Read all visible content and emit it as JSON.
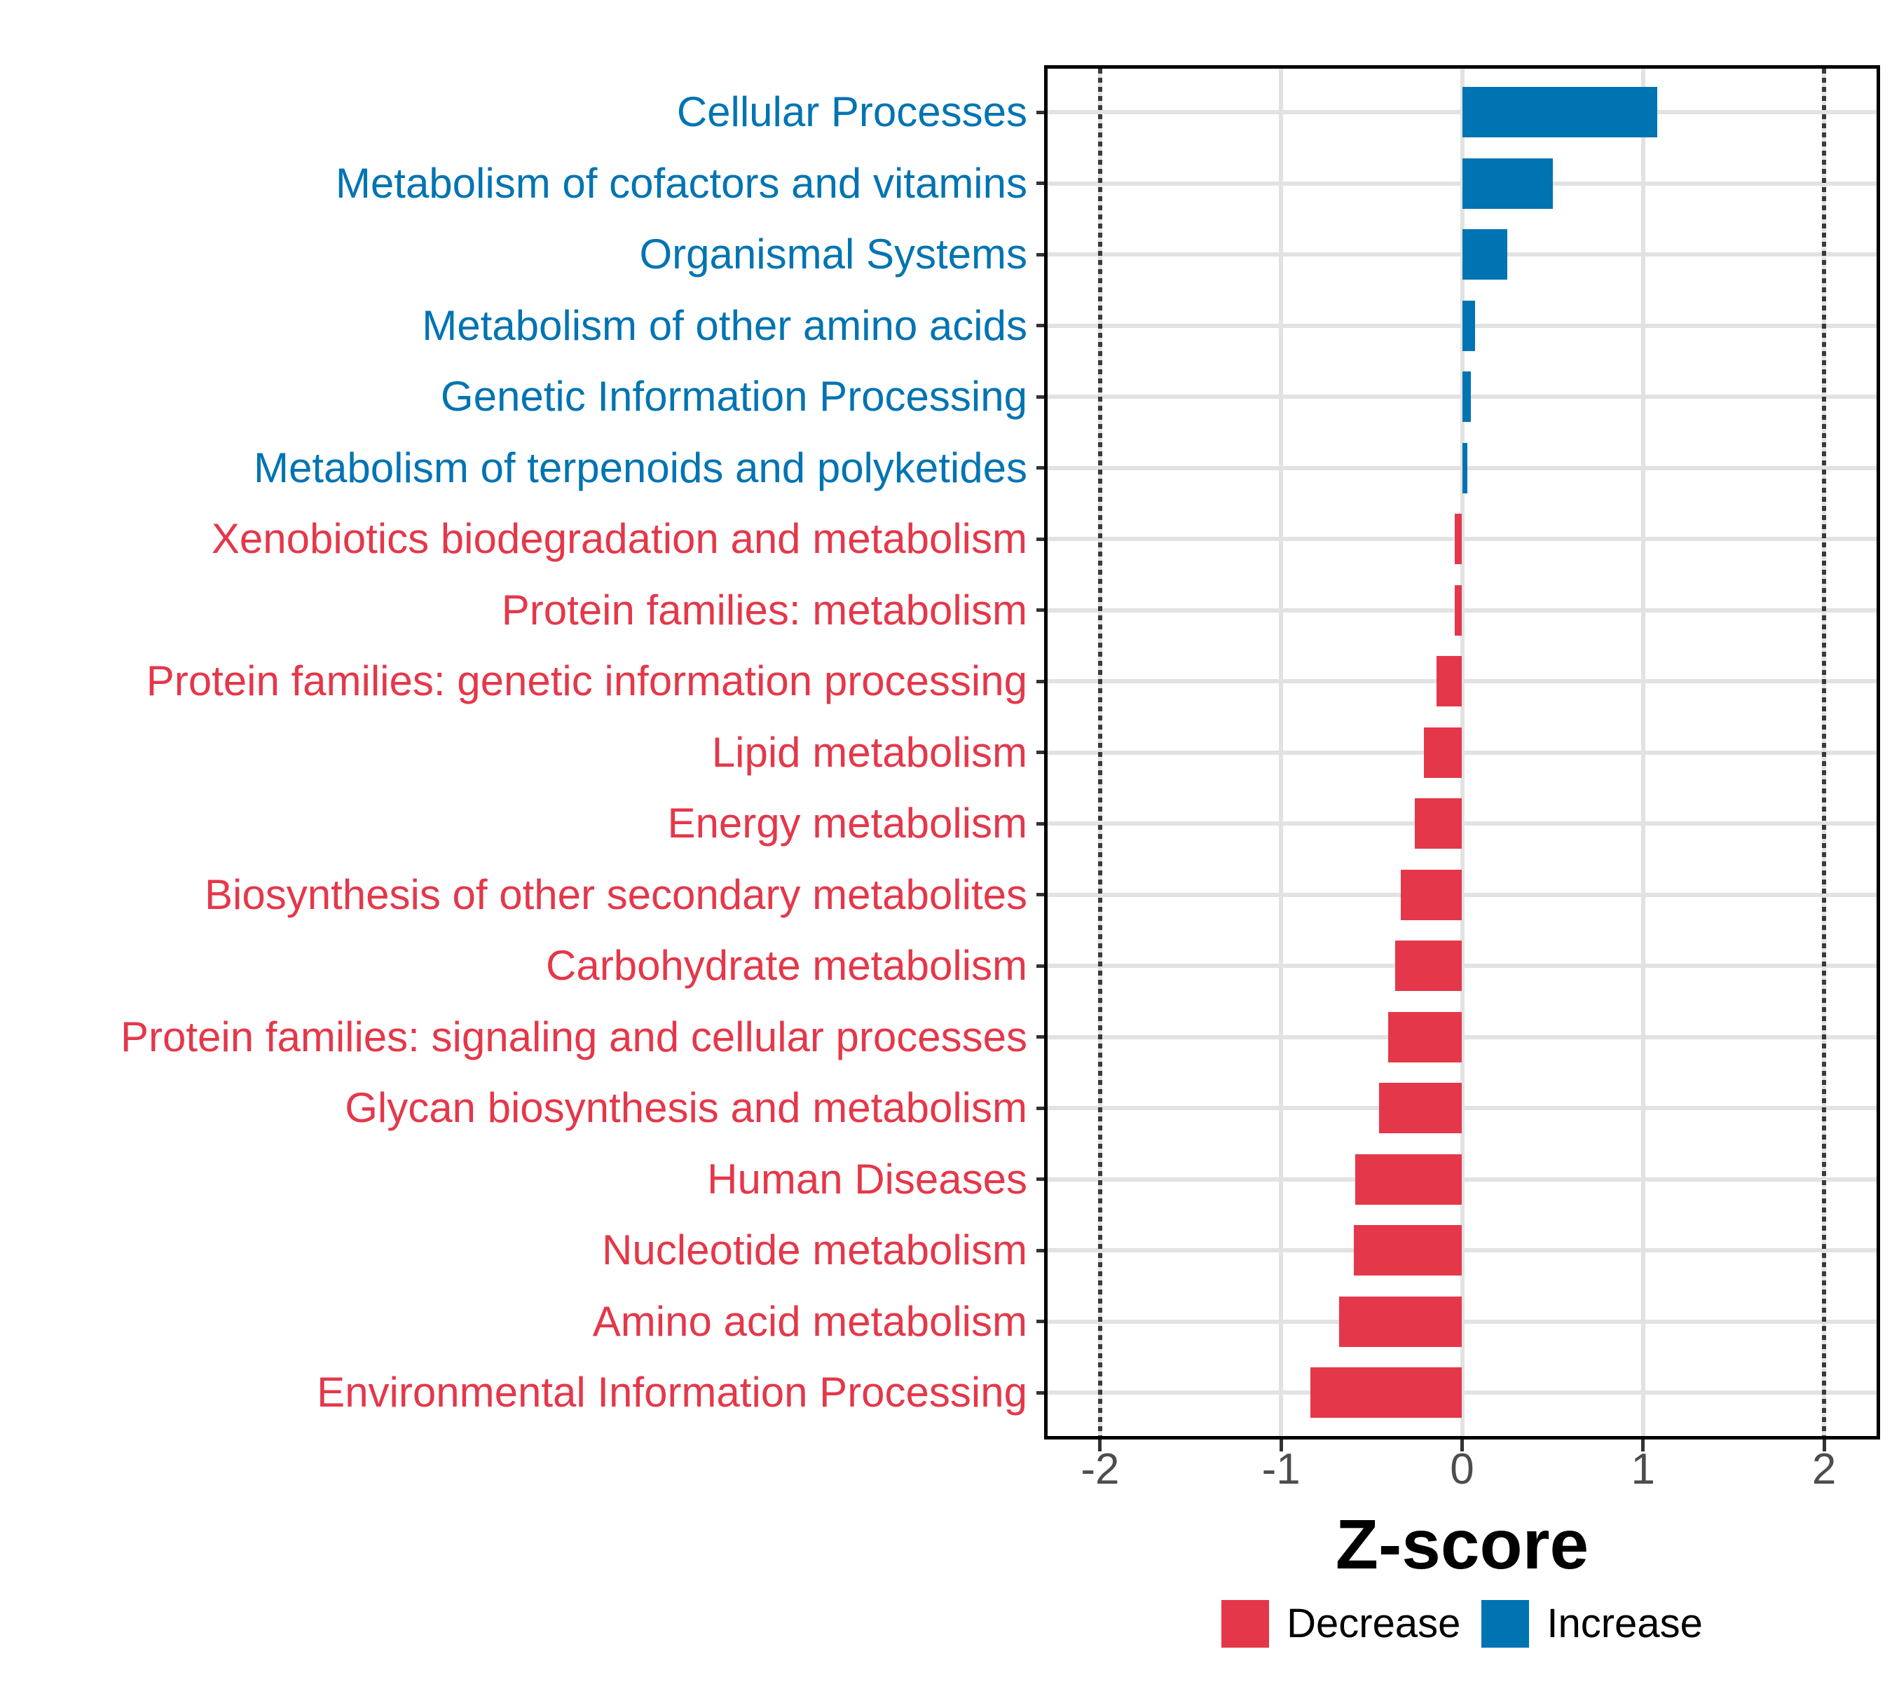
{
  "chart_data": {
    "type": "bar",
    "orientation": "horizontal",
    "title": "",
    "xlabel": "Z-score",
    "ylabel": "",
    "xlim": [
      -2.29,
      2.29
    ],
    "x_ticks": [
      -2,
      -1,
      0,
      1,
      2
    ],
    "x_tick_labels": [
      "-2",
      "-1",
      "0",
      "1",
      "2"
    ],
    "reference_lines_x": [
      -2,
      2
    ],
    "grid": true,
    "legend_position": "bottom",
    "colors": {
      "increase": "#0074B2",
      "decrease": "#E4384A"
    },
    "rows": [
      {
        "label": "Cellular Processes",
        "value": 1.08,
        "group": "increase"
      },
      {
        "label": "Metabolism of cofactors and vitamins",
        "value": 0.5,
        "group": "increase"
      },
      {
        "label": "Organismal Systems",
        "value": 0.25,
        "group": "increase"
      },
      {
        "label": "Metabolism of other amino acids",
        "value": 0.07,
        "group": "increase"
      },
      {
        "label": "Genetic Information Processing",
        "value": 0.05,
        "group": "increase"
      },
      {
        "label": "Metabolism of terpenoids and polyketides",
        "value": 0.03,
        "group": "increase"
      },
      {
        "label": "Xenobiotics biodegradation and metabolism",
        "value": -0.04,
        "group": "decrease"
      },
      {
        "label": "Protein families: metabolism",
        "value": -0.04,
        "group": "decrease"
      },
      {
        "label": "Protein families: genetic information processing",
        "value": -0.14,
        "group": "decrease"
      },
      {
        "label": "Lipid metabolism",
        "value": -0.21,
        "group": "decrease"
      },
      {
        "label": "Energy metabolism",
        "value": -0.26,
        "group": "decrease"
      },
      {
        "label": "Biosynthesis of other secondary metabolites",
        "value": -0.34,
        "group": "decrease"
      },
      {
        "label": "Carbohydrate metabolism",
        "value": -0.37,
        "group": "decrease"
      },
      {
        "label": "Protein families: signaling and cellular processes",
        "value": -0.41,
        "group": "decrease"
      },
      {
        "label": "Glycan biosynthesis and metabolism",
        "value": -0.46,
        "group": "decrease"
      },
      {
        "label": "Human Diseases",
        "value": -0.59,
        "group": "decrease"
      },
      {
        "label": "Nucleotide metabolism",
        "value": -0.6,
        "group": "decrease"
      },
      {
        "label": "Amino acid metabolism",
        "value": -0.68,
        "group": "decrease"
      },
      {
        "label": "Environmental Information Processing",
        "value": -0.84,
        "group": "decrease"
      }
    ],
    "legend": [
      {
        "label": "Decrease",
        "group": "decrease",
        "color": "#E4384A"
      },
      {
        "label": "Increase",
        "group": "increase",
        "color": "#0074B2"
      }
    ]
  }
}
